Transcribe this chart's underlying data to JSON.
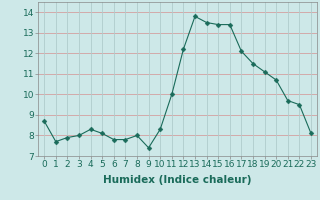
{
  "x": [
    0,
    1,
    2,
    3,
    4,
    5,
    6,
    7,
    8,
    9,
    10,
    11,
    12,
    13,
    14,
    15,
    16,
    17,
    18,
    19,
    20,
    21,
    22,
    23
  ],
  "y": [
    8.7,
    7.7,
    7.9,
    8.0,
    8.3,
    8.1,
    7.8,
    7.8,
    8.0,
    7.4,
    8.3,
    10.0,
    12.2,
    13.8,
    13.5,
    13.4,
    13.4,
    12.1,
    11.5,
    11.1,
    10.7,
    9.7,
    9.5,
    8.1
  ],
  "line_color": "#1a6b5a",
  "marker": "D",
  "marker_size": 2.5,
  "bg_color": "#cde8e8",
  "grid_color_h": "#d4a0a0",
  "grid_color_v": "#b0cccc",
  "xlabel": "Humidex (Indice chaleur)",
  "xlim": [
    -0.5,
    23.5
  ],
  "ylim": [
    7,
    14.5
  ],
  "yticks": [
    7,
    8,
    9,
    10,
    11,
    12,
    13,
    14
  ],
  "xticks": [
    0,
    1,
    2,
    3,
    4,
    5,
    6,
    7,
    8,
    9,
    10,
    11,
    12,
    13,
    14,
    15,
    16,
    17,
    18,
    19,
    20,
    21,
    22,
    23
  ],
  "xtick_labels": [
    "0",
    "1",
    "2",
    "3",
    "4",
    "5",
    "6",
    "7",
    "8",
    "9",
    "10",
    "11",
    "12",
    "13",
    "14",
    "15",
    "16",
    "17",
    "18",
    "19",
    "20",
    "21",
    "22",
    "23"
  ],
  "font_size_label": 7.5,
  "font_size_tick": 6.5
}
